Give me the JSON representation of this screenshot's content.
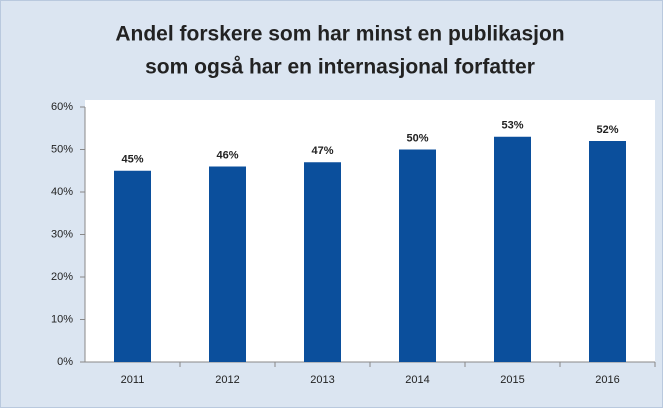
{
  "chart_data": {
    "type": "bar",
    "title": [
      "Andel forskere som har minst en publikasjon",
      "som også har en internasjonal forfatter"
    ],
    "categories": [
      "2011",
      "2012",
      "2013",
      "2014",
      "2015",
      "2016"
    ],
    "values": [
      45,
      46,
      47,
      50,
      53,
      52
    ],
    "value_labels": [
      "45%",
      "46%",
      "47%",
      "50%",
      "53%",
      "52%"
    ],
    "color": "#0b4f9c",
    "ylim": [
      0,
      60
    ],
    "yticks": [
      {
        "value": 0,
        "label": "0%"
      },
      {
        "value": 10,
        "label": "10%"
      },
      {
        "value": 20,
        "label": "20%"
      },
      {
        "value": 30,
        "label": "30%"
      },
      {
        "value": 40,
        "label": "40%"
      },
      {
        "value": 50,
        "label": "50%"
      },
      {
        "value": 60,
        "label": "60%"
      }
    ],
    "grid": false
  }
}
